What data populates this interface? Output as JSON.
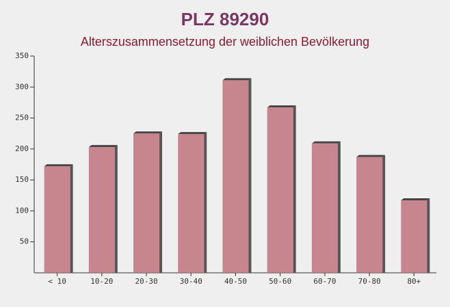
{
  "chart_data": {
    "type": "bar",
    "title": "PLZ 89290",
    "subtitle": "Alterszusammensetzung der weiblichen Bevölkerung",
    "categories": [
      "< 10",
      "10-20",
      "20-30",
      "30-40",
      "40-50",
      "50-60",
      "60-70",
      "70-80",
      "80+"
    ],
    "values": [
      172,
      203,
      225,
      224,
      311,
      267,
      209,
      187,
      117
    ],
    "color": "#c0737b",
    "ylim": [
      0,
      350
    ],
    "yticks": [
      50,
      100,
      150,
      200,
      250,
      300,
      350
    ]
  }
}
